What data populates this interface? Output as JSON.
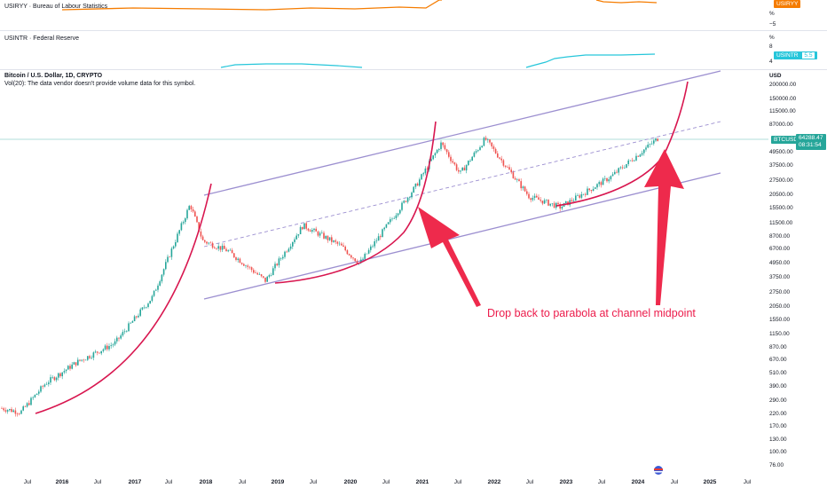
{
  "panes": {
    "cpi": {
      "title": "USIRYY · Bureau of Labour Statistics",
      "scale": [
        "%",
        "−5"
      ],
      "badge": "USIRYY",
      "color": "#f57c00"
    },
    "rate": {
      "title": "USINTR · Federal Reserve",
      "scale": [
        "%",
        "8",
        "4"
      ],
      "badge_name": "USINTR",
      "badge_value": "5.5",
      "color": "#26c6da"
    },
    "main": {
      "title": "Bitcoin / U.S. Dollar, 1D, CRYPTO",
      "volume_note": "Vol(20): The data vendor doesn't provide volume data for this symbol.",
      "currency": "USD",
      "price_ticks": [
        "200000.00",
        "150000.00",
        "115000.00",
        "87000.00",
        "49500.00",
        "37500.00",
        "27500.00",
        "20500.00",
        "15500.00",
        "11500.00",
        "8700.00",
        "6700.00",
        "4950.00",
        "3750.00",
        "2750.00",
        "2050.00",
        "1550.00",
        "1150.00",
        "870.00",
        "670.00",
        "510.00",
        "390.00",
        "290.00",
        "220.00",
        "170.00",
        "130.00",
        "100.00",
        "76.00"
      ],
      "symbol_badge": "BTCUSD",
      "price": "64288.47",
      "countdown": "08:31:54",
      "annotation": "Drop back to parabola at channel midpoint"
    }
  },
  "x_axis": [
    {
      "label": "Jul",
      "bold": false
    },
    {
      "label": "2016",
      "bold": true
    },
    {
      "label": "Jul",
      "bold": false
    },
    {
      "label": "2017",
      "bold": true
    },
    {
      "label": "Jul",
      "bold": false
    },
    {
      "label": "2018",
      "bold": true
    },
    {
      "label": "Jul",
      "bold": false
    },
    {
      "label": "2019",
      "bold": true
    },
    {
      "label": "Jul",
      "bold": false
    },
    {
      "label": "2020",
      "bold": true
    },
    {
      "label": "Jul",
      "bold": false
    },
    {
      "label": "2021",
      "bold": true
    },
    {
      "label": "Jul",
      "bold": false
    },
    {
      "label": "2022",
      "bold": true
    },
    {
      "label": "Jul",
      "bold": false
    },
    {
      "label": "2023",
      "bold": true
    },
    {
      "label": "Jul",
      "bold": false
    },
    {
      "label": "2024",
      "bold": true
    },
    {
      "label": "Jul",
      "bold": false
    },
    {
      "label": "2025",
      "bold": true
    },
    {
      "label": "Jul",
      "bold": false
    }
  ],
  "colors": {
    "channel": "#9c8fd0",
    "parabola": "#d8164f",
    "arrow": "#ee2a4c",
    "up": "#26a69a",
    "down": "#ef5350",
    "price_line": "#26a69a"
  },
  "chart_data": {
    "type": "candlestick",
    "symbol": "BTCUSD",
    "interval": "1D",
    "scale": "log",
    "last_price": 64288.47,
    "y_ticks": [
      200000,
      150000,
      115000,
      87000,
      49500,
      37500,
      27500,
      20500,
      15500,
      11500,
      8700,
      6700,
      4950,
      3750,
      2750,
      2050,
      1550,
      1150,
      870,
      670,
      510,
      390,
      290,
      220,
      170,
      130,
      100,
      76
    ],
    "approx_path": [
      [
        "2015-06",
        250
      ],
      [
        "2015-09",
        230
      ],
      [
        "2016-01",
        420
      ],
      [
        "2016-06",
        650
      ],
      [
        "2016-12",
        960
      ],
      [
        "2017-06",
        2500
      ],
      [
        "2017-12",
        17000
      ],
      [
        "2018-02",
        8000
      ],
      [
        "2018-06",
        6500
      ],
      [
        "2018-12",
        3500
      ],
      [
        "2019-06",
        11000
      ],
      [
        "2019-12",
        7200
      ],
      [
        "2020-03",
        5000
      ],
      [
        "2020-12",
        25000
      ],
      [
        "2021-04",
        60000
      ],
      [
        "2021-07",
        32000
      ],
      [
        "2021-11",
        66000
      ],
      [
        "2022-06",
        20000
      ],
      [
        "2022-11",
        16000
      ],
      [
        "2023-07",
        30000
      ],
      [
        "2024-03",
        70000
      ],
      [
        "2024-05",
        64288
      ]
    ]
  }
}
